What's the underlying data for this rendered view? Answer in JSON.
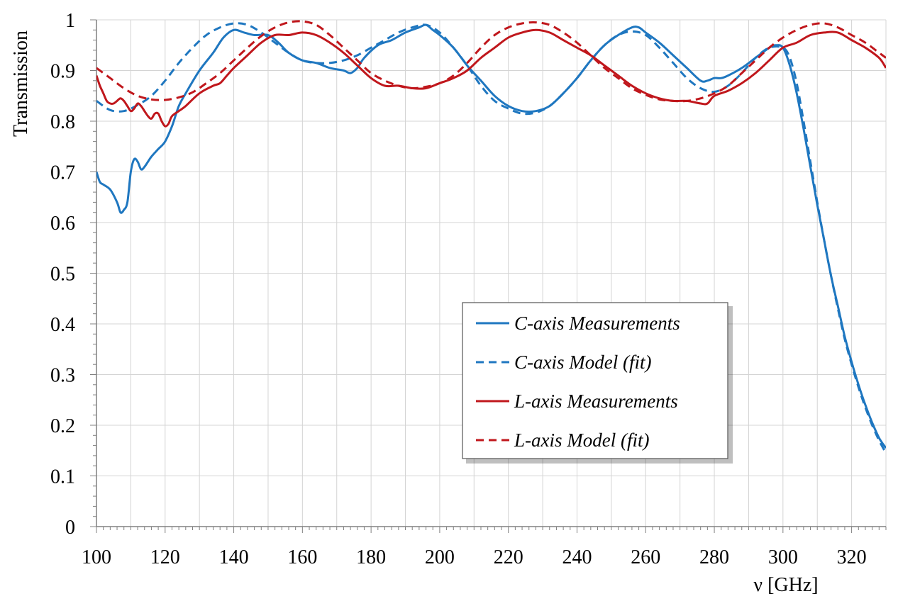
{
  "chart_data": {
    "type": "line",
    "title": "",
    "xlabel": "ν [GHz]",
    "ylabel": "Transmission",
    "xlim": [
      100,
      330
    ],
    "ylim": [
      0,
      1
    ],
    "x_ticks": [
      100,
      120,
      140,
      160,
      180,
      200,
      220,
      240,
      260,
      280,
      300,
      320
    ],
    "x_tick_labels": [
      "100",
      "120",
      "140",
      "160",
      "180",
      "200",
      "220",
      "240",
      "260",
      "280",
      "300",
      "320"
    ],
    "y_ticks": [
      0,
      0.1,
      0.2,
      0.3,
      0.4,
      0.5,
      0.6,
      0.7,
      0.8,
      0.9,
      1
    ],
    "y_tick_labels": [
      "0",
      "0.1",
      "0.2",
      "0.3",
      "0.4",
      "0.5",
      "0.6",
      "0.7",
      "0.8",
      "0.9",
      "1"
    ],
    "grid": true,
    "legend_position": "center-right",
    "series": [
      {
        "name": "C-axis Measurements",
        "color": "#1f77c0",
        "dash": "solid",
        "x": [
          100,
          101,
          102,
          104,
          106,
          107,
          108,
          109,
          110,
          111,
          112,
          113,
          114,
          116,
          118,
          120,
          122,
          124,
          126,
          130,
          134,
          137,
          140,
          143,
          146,
          150,
          153,
          156,
          160,
          164,
          168,
          172,
          174,
          176,
          178,
          182,
          186,
          190,
          194,
          196,
          198,
          200,
          204,
          208,
          212,
          216,
          220,
          224,
          228,
          232,
          236,
          240,
          244,
          248,
          252,
          256,
          258,
          260,
          264,
          268,
          272,
          276,
          278,
          280,
          282,
          284,
          288,
          292,
          296,
          298,
          300,
          302,
          304,
          306,
          308,
          310,
          312,
          314,
          316,
          318,
          320,
          322,
          324,
          326,
          328,
          330
        ],
        "y": [
          0.7,
          0.68,
          0.675,
          0.665,
          0.64,
          0.62,
          0.625,
          0.64,
          0.7,
          0.725,
          0.72,
          0.705,
          0.71,
          0.73,
          0.745,
          0.76,
          0.79,
          0.83,
          0.855,
          0.9,
          0.935,
          0.965,
          0.98,
          0.975,
          0.97,
          0.97,
          0.955,
          0.935,
          0.92,
          0.915,
          0.905,
          0.9,
          0.895,
          0.905,
          0.925,
          0.95,
          0.96,
          0.975,
          0.985,
          0.99,
          0.98,
          0.97,
          0.945,
          0.91,
          0.88,
          0.85,
          0.83,
          0.82,
          0.82,
          0.83,
          0.855,
          0.885,
          0.92,
          0.95,
          0.97,
          0.985,
          0.985,
          0.975,
          0.955,
          0.93,
          0.905,
          0.88,
          0.88,
          0.885,
          0.885,
          0.89,
          0.905,
          0.925,
          0.945,
          0.95,
          0.945,
          0.91,
          0.855,
          0.785,
          0.71,
          0.635,
          0.565,
          0.495,
          0.435,
          0.375,
          0.325,
          0.28,
          0.24,
          0.205,
          0.175,
          0.155
        ]
      },
      {
        "name": "C-axis Model (fit)",
        "color": "#1f77c0",
        "dash": "dashed",
        "x": [
          100,
          104,
          108,
          112,
          116,
          120,
          124,
          128,
          132,
          136,
          140,
          144,
          148,
          152,
          156,
          160,
          164,
          168,
          172,
          176,
          180,
          184,
          188,
          192,
          196,
          200,
          204,
          208,
          212,
          216,
          220,
          224,
          228,
          232,
          236,
          240,
          244,
          248,
          252,
          256,
          260,
          264,
          268,
          272,
          276,
          280,
          284,
          288,
          292,
          296,
          300,
          302,
          304,
          306,
          308,
          310,
          312,
          314,
          316,
          318,
          320,
          322,
          324,
          326,
          328,
          330
        ],
        "y": [
          0.84,
          0.822,
          0.82,
          0.832,
          0.85,
          0.88,
          0.915,
          0.945,
          0.97,
          0.985,
          0.993,
          0.99,
          0.975,
          0.955,
          0.935,
          0.92,
          0.915,
          0.915,
          0.92,
          0.93,
          0.945,
          0.96,
          0.975,
          0.985,
          0.99,
          0.975,
          0.945,
          0.91,
          0.87,
          0.84,
          0.825,
          0.815,
          0.817,
          0.83,
          0.855,
          0.885,
          0.92,
          0.95,
          0.97,
          0.977,
          0.97,
          0.945,
          0.915,
          0.885,
          0.865,
          0.858,
          0.87,
          0.895,
          0.925,
          0.945,
          0.945,
          0.925,
          0.875,
          0.8,
          0.72,
          0.64,
          0.565,
          0.495,
          0.43,
          0.37,
          0.32,
          0.275,
          0.235,
          0.2,
          0.17,
          0.145
        ]
      },
      {
        "name": "L-axis Measurements",
        "color": "#c0171c",
        "dash": "solid",
        "x": [
          100,
          101,
          102,
          103,
          104,
          105,
          106,
          107,
          108,
          109,
          110,
          111,
          112,
          113,
          114,
          115,
          116,
          117,
          118,
          119,
          120,
          121,
          122,
          124,
          126,
          130,
          134,
          136,
          138,
          140,
          144,
          148,
          152,
          156,
          160,
          164,
          168,
          172,
          176,
          180,
          184,
          188,
          192,
          196,
          200,
          204,
          208,
          212,
          216,
          220,
          224,
          228,
          232,
          236,
          240,
          244,
          248,
          252,
          256,
          260,
          264,
          268,
          272,
          276,
          278,
          280,
          284,
          288,
          292,
          296,
          300,
          304,
          308,
          312,
          316,
          320,
          324,
          328,
          330
        ],
        "y": [
          0.89,
          0.87,
          0.855,
          0.84,
          0.835,
          0.835,
          0.84,
          0.845,
          0.84,
          0.83,
          0.82,
          0.825,
          0.835,
          0.83,
          0.82,
          0.81,
          0.805,
          0.815,
          0.815,
          0.8,
          0.79,
          0.795,
          0.81,
          0.82,
          0.83,
          0.855,
          0.87,
          0.875,
          0.89,
          0.905,
          0.93,
          0.955,
          0.97,
          0.97,
          0.975,
          0.97,
          0.955,
          0.935,
          0.91,
          0.885,
          0.87,
          0.87,
          0.865,
          0.865,
          0.875,
          0.885,
          0.9,
          0.925,
          0.945,
          0.965,
          0.975,
          0.98,
          0.975,
          0.96,
          0.945,
          0.93,
          0.91,
          0.89,
          0.87,
          0.855,
          0.845,
          0.84,
          0.84,
          0.835,
          0.835,
          0.85,
          0.86,
          0.875,
          0.895,
          0.92,
          0.945,
          0.955,
          0.97,
          0.975,
          0.975,
          0.96,
          0.945,
          0.925,
          0.905
        ]
      },
      {
        "name": "L-axis Model (fit)",
        "color": "#c0171c",
        "dash": "dashed",
        "x": [
          100,
          104,
          108,
          112,
          116,
          120,
          124,
          128,
          132,
          136,
          140,
          144,
          148,
          152,
          156,
          160,
          164,
          168,
          172,
          176,
          180,
          184,
          188,
          192,
          196,
          200,
          204,
          208,
          212,
          216,
          220,
          224,
          228,
          232,
          236,
          240,
          244,
          248,
          252,
          256,
          260,
          264,
          268,
          272,
          276,
          280,
          284,
          288,
          292,
          296,
          300,
          304,
          308,
          312,
          316,
          320,
          324,
          328,
          330
        ],
        "y": [
          0.905,
          0.885,
          0.865,
          0.85,
          0.843,
          0.842,
          0.847,
          0.857,
          0.875,
          0.895,
          0.92,
          0.945,
          0.968,
          0.985,
          0.995,
          0.997,
          0.99,
          0.97,
          0.945,
          0.92,
          0.895,
          0.88,
          0.87,
          0.865,
          0.868,
          0.875,
          0.89,
          0.915,
          0.945,
          0.97,
          0.985,
          0.993,
          0.995,
          0.99,
          0.975,
          0.955,
          0.93,
          0.905,
          0.885,
          0.865,
          0.852,
          0.843,
          0.84,
          0.84,
          0.845,
          0.855,
          0.87,
          0.895,
          0.92,
          0.945,
          0.965,
          0.98,
          0.99,
          0.993,
          0.985,
          0.97,
          0.955,
          0.935,
          0.925
        ]
      }
    ]
  }
}
